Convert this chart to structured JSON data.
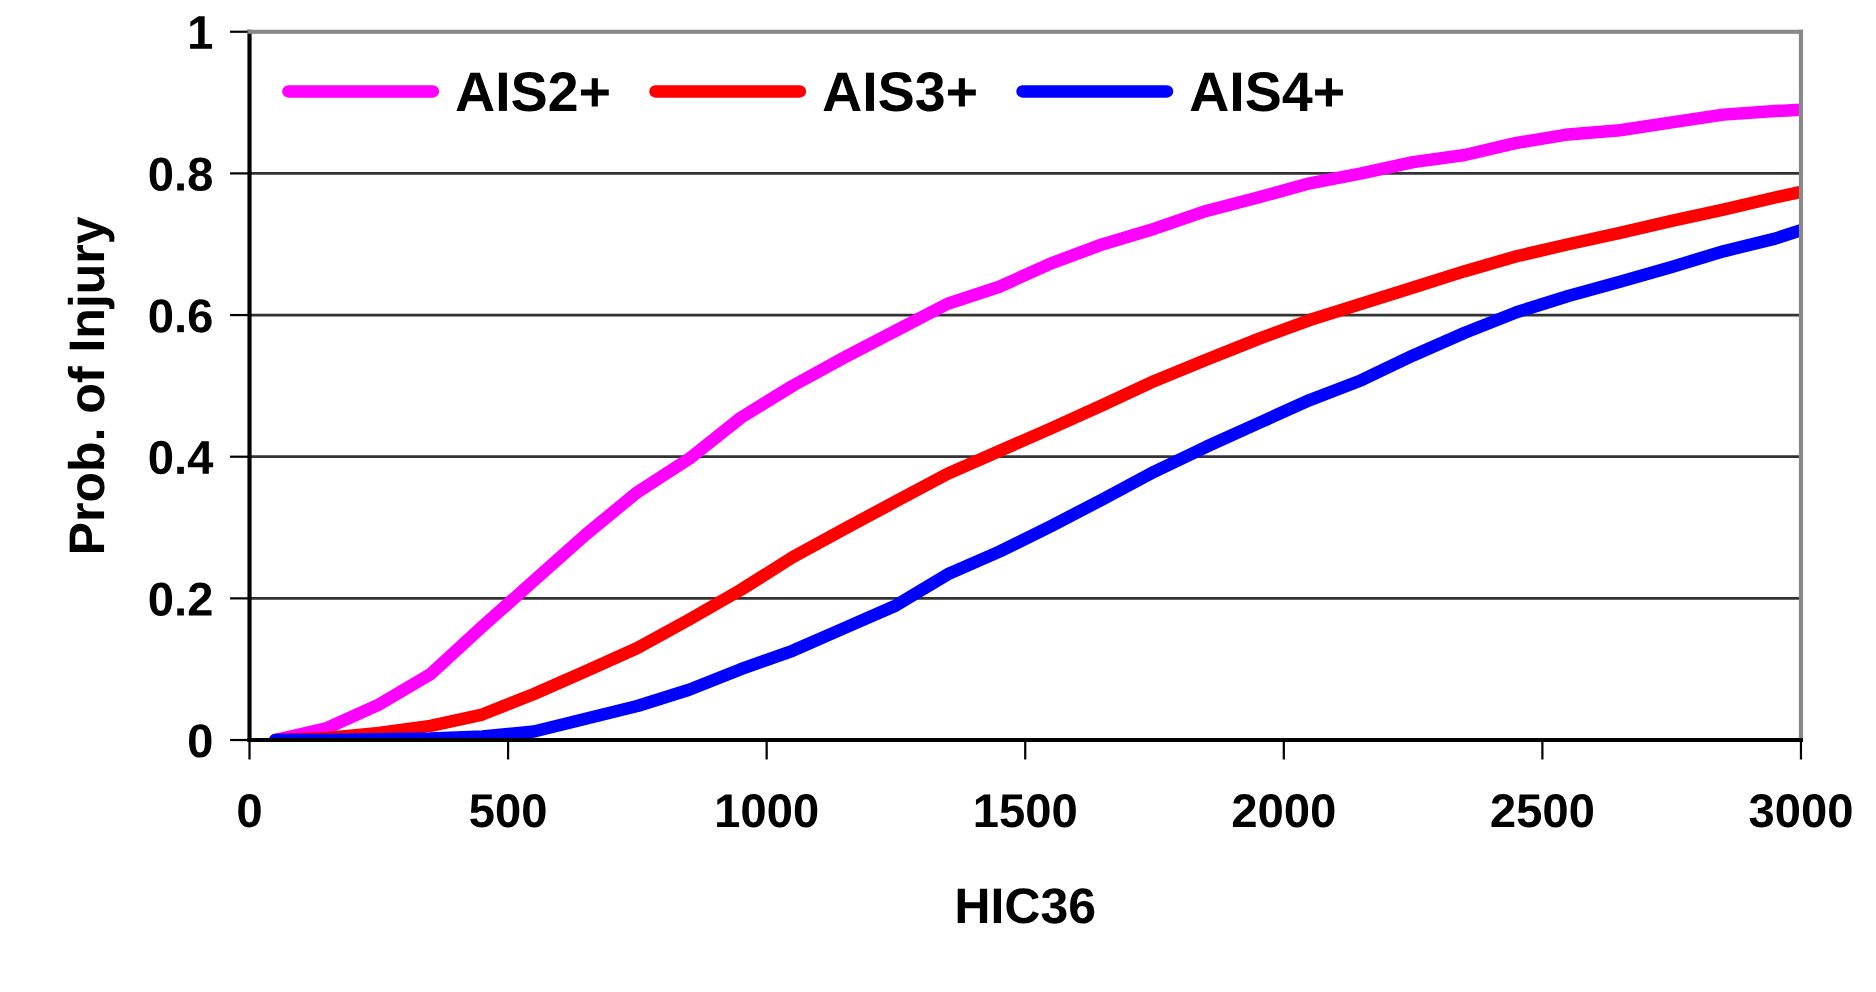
{
  "chart_data": {
    "type": "line",
    "xlabel": "HIC36",
    "ylabel": "Prob. of Injury",
    "x": [
      50,
      150,
      250,
      350,
      450,
      550,
      650,
      750,
      850,
      950,
      1050,
      1150,
      1250,
      1350,
      1450,
      1550,
      1650,
      1750,
      1850,
      1950,
      2050,
      2150,
      2250,
      2350,
      2450,
      2550,
      2650,
      2750,
      2850,
      2950,
      3000
    ],
    "series": [
      {
        "name": "AIS2+",
        "color": "#ff00ff",
        "values": [
          0,
          0.017,
          0.05,
          0.093,
          0.16,
          0.225,
          0.29,
          0.35,
          0.397,
          0.455,
          0.5,
          0.54,
          0.578,
          0.616,
          0.64,
          0.673,
          0.7,
          0.722,
          0.747,
          0.766,
          0.786,
          0.8,
          0.816,
          0.826,
          0.843,
          0.855,
          0.861,
          0.872,
          0.883,
          0.888,
          0.89
        ]
      },
      {
        "name": "AIS3+",
        "color": "#ff0000",
        "values": [
          0,
          0.003,
          0.01,
          0.02,
          0.036,
          0.065,
          0.097,
          0.13,
          0.17,
          0.212,
          0.258,
          0.298,
          0.337,
          0.376,
          0.408,
          0.44,
          0.473,
          0.507,
          0.537,
          0.566,
          0.593,
          0.616,
          0.639,
          0.662,
          0.683,
          0.7,
          0.716,
          0.733,
          0.749,
          0.766,
          0.774
        ]
      },
      {
        "name": "AIS4+",
        "color": "#0000ff",
        "values": [
          0,
          0,
          0.001,
          0.002,
          0.005,
          0.012,
          0.03,
          0.048,
          0.071,
          0.1,
          0.126,
          0.158,
          0.19,
          0.234,
          0.266,
          0.302,
          0.34,
          0.379,
          0.414,
          0.447,
          0.48,
          0.508,
          0.543,
          0.575,
          0.604,
          0.627,
          0.647,
          0.668,
          0.69,
          0.708,
          0.72
        ]
      }
    ],
    "xlim": [
      0,
      3000
    ],
    "xticks": [
      0,
      500,
      1000,
      1500,
      2000,
      2500,
      3000
    ],
    "ylim": [
      0,
      1
    ],
    "yticks": [
      0,
      0.2,
      0.4,
      0.6,
      0.8,
      1
    ],
    "grid": "y",
    "legend": "top left",
    "marker": "none",
    "line_style": "solid"
  }
}
